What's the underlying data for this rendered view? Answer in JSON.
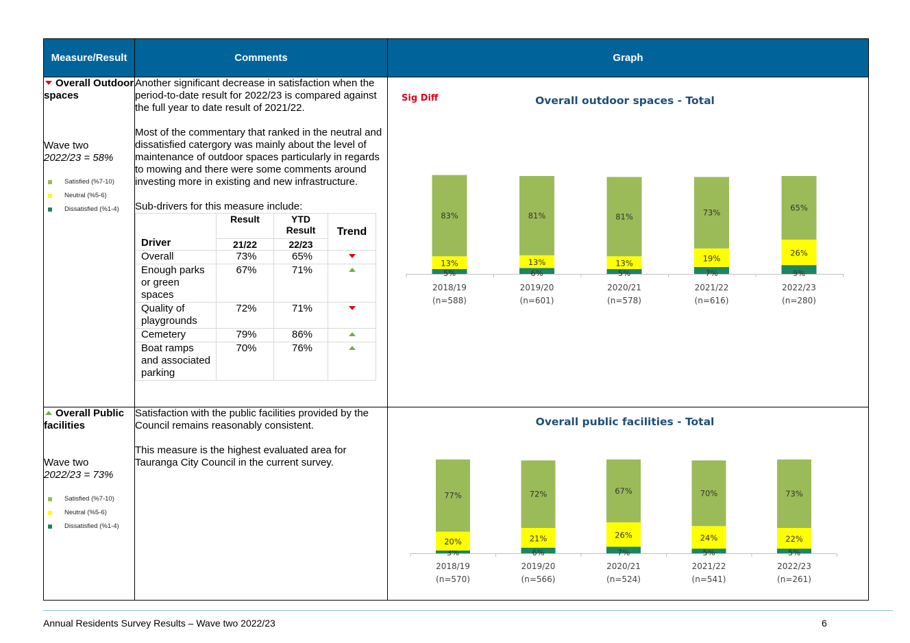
{
  "header": {
    "col1": "Measure/Result",
    "col2": "Comments",
    "col3": "Graph"
  },
  "colors": {
    "header_bg": "#00649b",
    "satisfied": "#9bbb59",
    "neutral": "#ffff00",
    "dissatisfied": "#1e8563",
    "trend_up": "#70ad47",
    "trend_down": "#e3001b",
    "chart_title": "#1f4e79",
    "sig_diff": "#e3001b"
  },
  "legend": {
    "satisfied": "Satisfied (%7-10)",
    "neutral": "Neutral (%5-6)",
    "dissatisfied": "Dissatisfied (%1-4)"
  },
  "rows": [
    {
      "measure": "Overall Outdoor spaces",
      "measure_trend": "down",
      "wave_label": "Wave two",
      "wave_result": "2022/23 = 58%",
      "comments": [
        "Another significant decrease in satisfaction when the period-to-date result for 2022/23 is compared against the full year to date result of 2021/22.",
        "Most of the commentary that ranked in the neutral and dissatisfied catergory was mainly about the level of maintenance of outdoor spaces particularly in regards to mowing and there were some comments around investing more in existing and new infrastructure.",
        "Sub-drivers for this measure include:"
      ],
      "drivers_table": {
        "headers": {
          "driver": "Driver",
          "result": "Result",
          "result_sub": "21/22",
          "ytd": "YTD Result",
          "ytd_sub": "22/23",
          "trend": "Trend"
        },
        "rows": [
          {
            "driver": "Overall",
            "result": "73%",
            "ytd": "65%",
            "trend": "down"
          },
          {
            "driver": "Enough parks or green spaces",
            "result": "67%",
            "ytd": "71%",
            "trend": "up"
          },
          {
            "driver": "Quality of playgrounds",
            "result": "72%",
            "ytd": "71%",
            "trend": "down"
          },
          {
            "driver": "Cemetery",
            "result": "79%",
            "ytd": "86%",
            "trend": "up"
          },
          {
            "driver": "Boat ramps and associated parking",
            "result": "70%",
            "ytd": "76%",
            "trend": "up"
          }
        ]
      }
    },
    {
      "measure": "Overall Public facilities",
      "measure_trend": "up",
      "wave_label": "Wave two",
      "wave_result": "2022/23 = 73%",
      "comments": [
        "Satisfaction with the public facilities provided by the Council remains reasonably consistent.",
        "This measure is the highest evaluated area for Tauranga City Council in the current survey."
      ]
    }
  ],
  "chart_data": [
    {
      "type": "bar",
      "stacked": true,
      "title": "Overall outdoor spaces - Total",
      "annotation": "Sig Diff",
      "categories": [
        "2018/19",
        "2019/20",
        "2020/21",
        "2021/22",
        "2022/23"
      ],
      "sample_sizes": [
        "(n=588)",
        "(n=601)",
        "(n=578)",
        "(n=616)",
        "(n=280)"
      ],
      "series": [
        {
          "key": "dissatisfied",
          "values": [
            5,
            6,
            5,
            7,
            9
          ]
        },
        {
          "key": "neutral",
          "values": [
            13,
            13,
            13,
            19,
            26
          ]
        },
        {
          "key": "satisfied",
          "values": [
            83,
            81,
            81,
            73,
            65
          ]
        }
      ],
      "ylim": [
        0,
        100
      ]
    },
    {
      "type": "bar",
      "stacked": true,
      "title": "Overall public facilities - Total",
      "categories": [
        "2018/19",
        "2019/20",
        "2020/21",
        "2021/22",
        "2022/23"
      ],
      "sample_sizes": [
        "(n=570)",
        "(n=566)",
        "(n=524)",
        "(n=541)",
        "(n=261)"
      ],
      "series": [
        {
          "key": "dissatisfied",
          "values": [
            3,
            6,
            7,
            5,
            5
          ]
        },
        {
          "key": "neutral",
          "values": [
            20,
            21,
            26,
            24,
            22
          ]
        },
        {
          "key": "satisfied",
          "values": [
            77,
            72,
            67,
            70,
            73
          ]
        }
      ],
      "ylim": [
        0,
        100
      ]
    }
  ],
  "footer": {
    "text": "Annual Residents Survey Results – Wave two 2022/23",
    "page": "6"
  }
}
